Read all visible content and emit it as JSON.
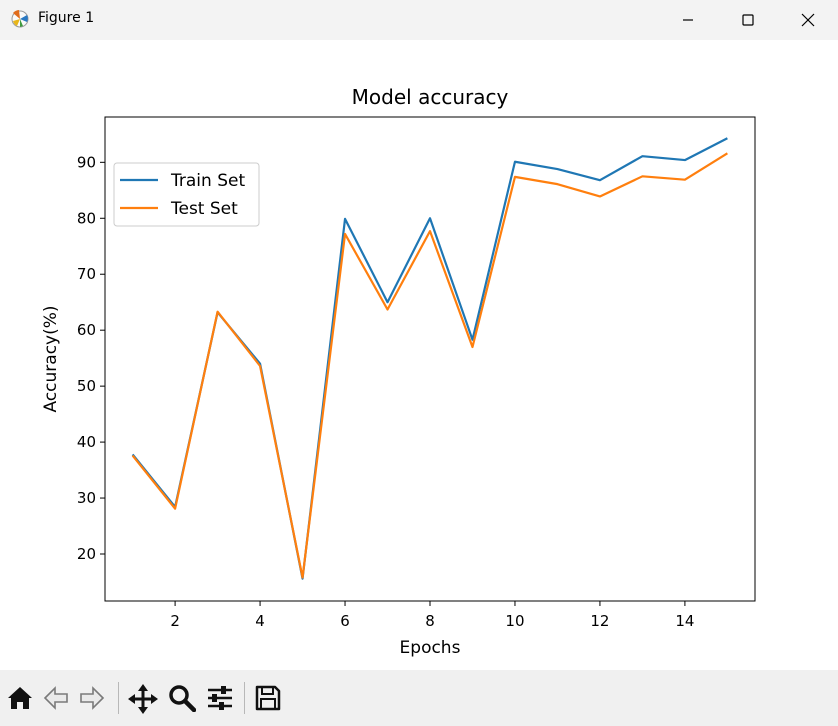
{
  "window": {
    "title": "Figure 1",
    "icons": [
      "matplotlib-icon",
      "minimize-icon",
      "maximize-icon",
      "close-icon"
    ]
  },
  "toolbar": {
    "buttons": [
      "home-icon",
      "back-icon",
      "forward-icon",
      "pan-icon",
      "zoom-icon",
      "configure-subplots-icon",
      "save-icon"
    ]
  },
  "chart_data": {
    "type": "line",
    "title": "Model accuracy",
    "xlabel": "Epochs",
    "ylabel": "Accuracy(%)",
    "x": [
      1,
      2,
      3,
      4,
      5,
      6,
      7,
      8,
      9,
      10,
      11,
      12,
      13,
      14,
      15
    ],
    "xlim": [
      0.35,
      15.65
    ],
    "ylim": [
      11.6,
      98.1
    ],
    "xticks": [
      2,
      4,
      6,
      8,
      10,
      12,
      14
    ],
    "yticks": [
      20,
      30,
      40,
      50,
      60,
      70,
      80,
      90
    ],
    "grid": false,
    "legend_position": "top-left",
    "series": [
      {
        "name": "Train Set",
        "color": "#1f77b4",
        "values": [
          37.8,
          28.4,
          63.2,
          54.0,
          15.6,
          79.9,
          65.0,
          80.0,
          58.3,
          90.1,
          88.8,
          86.8,
          91.1,
          90.4,
          94.3
        ]
      },
      {
        "name": "Test Set",
        "color": "#ff7f0e",
        "values": [
          37.6,
          28.1,
          63.3,
          53.6,
          15.8,
          77.2,
          63.7,
          77.7,
          57.0,
          87.4,
          86.1,
          83.9,
          87.5,
          86.9,
          91.6
        ]
      }
    ]
  }
}
